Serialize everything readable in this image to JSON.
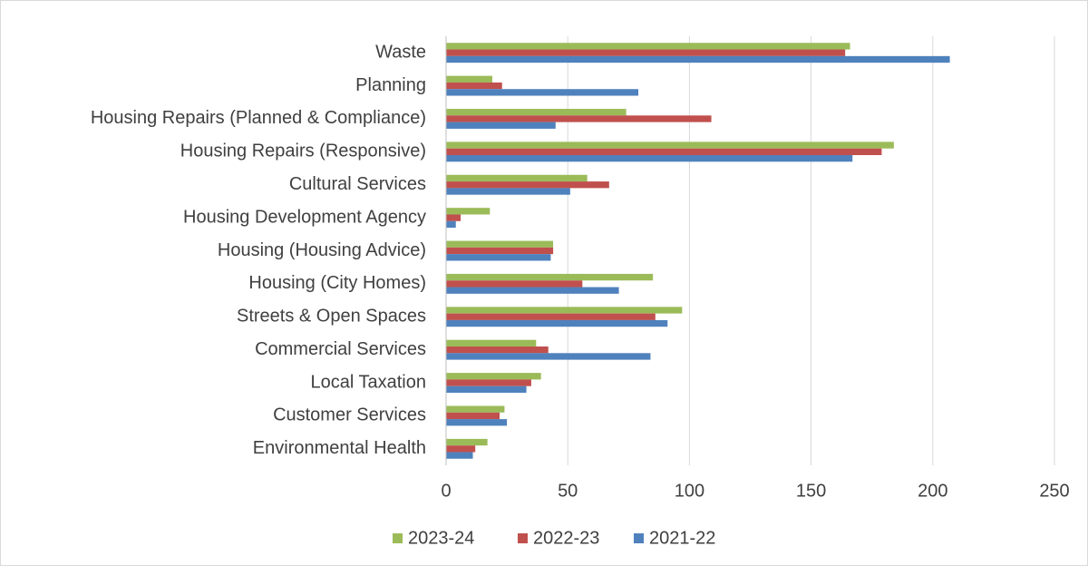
{
  "chart_data": {
    "type": "bar",
    "orientation": "horizontal",
    "categories": [
      "Waste",
      "Planning",
      "Housing Repairs (Planned & Compliance)",
      "Housing Repairs (Responsive)",
      "Cultural Services",
      "Housing Development Agency",
      "Housing (Housing Advice)",
      "Housing (City Homes)",
      "Streets & Open Spaces",
      "Commercial Services",
      "Local Taxation",
      "Customer Services",
      "Environmental Health"
    ],
    "series": [
      {
        "name": "2023-24",
        "color": "#9bbb59",
        "values": [
          166,
          19,
          74,
          184,
          58,
          18,
          44,
          85,
          97,
          37,
          39,
          24,
          17
        ]
      },
      {
        "name": "2022-23",
        "color": "#c0504d",
        "values": [
          164,
          23,
          109,
          179,
          67,
          6,
          44,
          56,
          86,
          42,
          35,
          22,
          12
        ]
      },
      {
        "name": "2021-22",
        "color": "#4f81bd",
        "values": [
          207,
          79,
          45,
          167,
          51,
          4,
          43,
          71,
          91,
          84,
          33,
          25,
          11
        ]
      }
    ],
    "xlim": [
      0,
      250
    ],
    "xticks": [
      0,
      50,
      100,
      150,
      200,
      250
    ],
    "grid": true,
    "legend": "bottom"
  }
}
